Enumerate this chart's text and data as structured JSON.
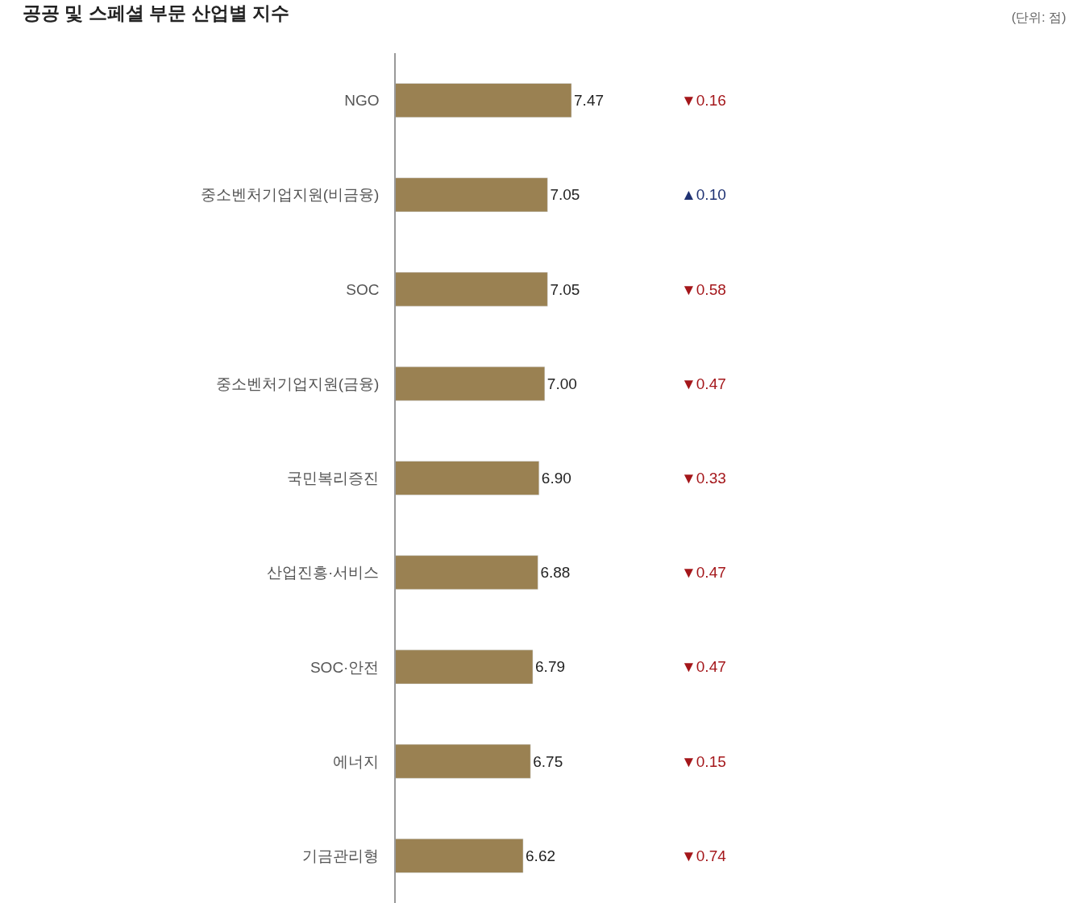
{
  "chart_data": {
    "type": "bar",
    "orientation": "horizontal",
    "title": "공공 및 스페셜 부문 산업별 지수",
    "categories": [
      "NGO",
      "중소벤처기업지원(비금융)",
      "SOC",
      "중소벤처기업지원(금융)",
      "국민복리증진",
      "산업진흥·서비스",
      "SOC·안전",
      "에너지",
      "기금관리형"
    ],
    "values": [
      7.47,
      7.05,
      7.05,
      7.0,
      6.9,
      6.88,
      6.79,
      6.75,
      6.62
    ],
    "value_labels": [
      "7.47",
      "7.05",
      "7.05",
      "7.00",
      "6.90",
      "6.88",
      "6.79",
      "6.75",
      "6.62"
    ],
    "color": "#9a8152",
    "xlim": [
      4.38,
      16.2
    ],
    "tick_labels": "y",
    "legend": false,
    "annotations": [
      "(단위: 점)",
      "▼0.16",
      "▲0.10",
      "▼0.58",
      "▼0.47",
      "▼0.33",
      "▼0.47",
      "▼0.47",
      "▼0.15",
      "▼0.74"
    ]
  }
}
